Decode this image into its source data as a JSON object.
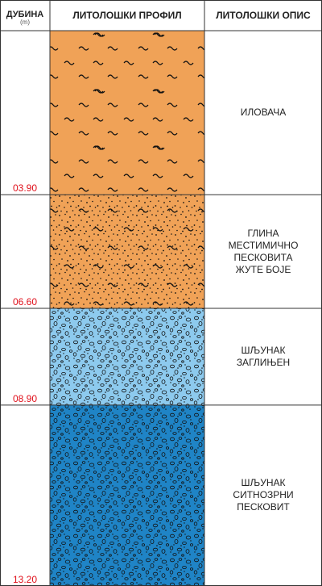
{
  "headers": {
    "depth": "ДУБИНА",
    "depth_unit": "(m)",
    "profile": "ЛИТОЛОШКИ ПРОФИЛ",
    "description": "ЛИТОЛОШКИ ОПИС"
  },
  "depth_scale": {
    "top": 0,
    "bottom": 13.2
  },
  "layers": [
    {
      "bottom_depth": 3.9,
      "depth_label": "03.90",
      "pattern": "clay-tilde",
      "color": "#f0a257",
      "description": [
        "ИЛОВАЧА"
      ]
    },
    {
      "bottom_depth": 6.6,
      "depth_label": "06.60",
      "pattern": "sandy-clay-dots-tilde",
      "color": "#f0a257",
      "description": [
        "ГЛИНА",
        "МЕСТИМИЧНО",
        "ПЕСКОВИТА",
        "ЖУТЕ БОЈЕ"
      ]
    },
    {
      "bottom_depth": 8.9,
      "depth_label": "08.90",
      "pattern": "clayey-gravel",
      "color": "#8dcaee",
      "description": [
        "ШЉУНАК",
        "ЗАГЛИЊЕН"
      ]
    },
    {
      "bottom_depth": 13.2,
      "depth_label": "13.20",
      "pattern": "sandy-gravel",
      "color": "#1f84c6",
      "description": [
        "ШЉУНАК",
        "СИТНОЗРНИ",
        "ПЕСКОВИТ"
      ]
    }
  ],
  "colors": {
    "grid": "#333333",
    "depth_text": "#e0101b"
  }
}
